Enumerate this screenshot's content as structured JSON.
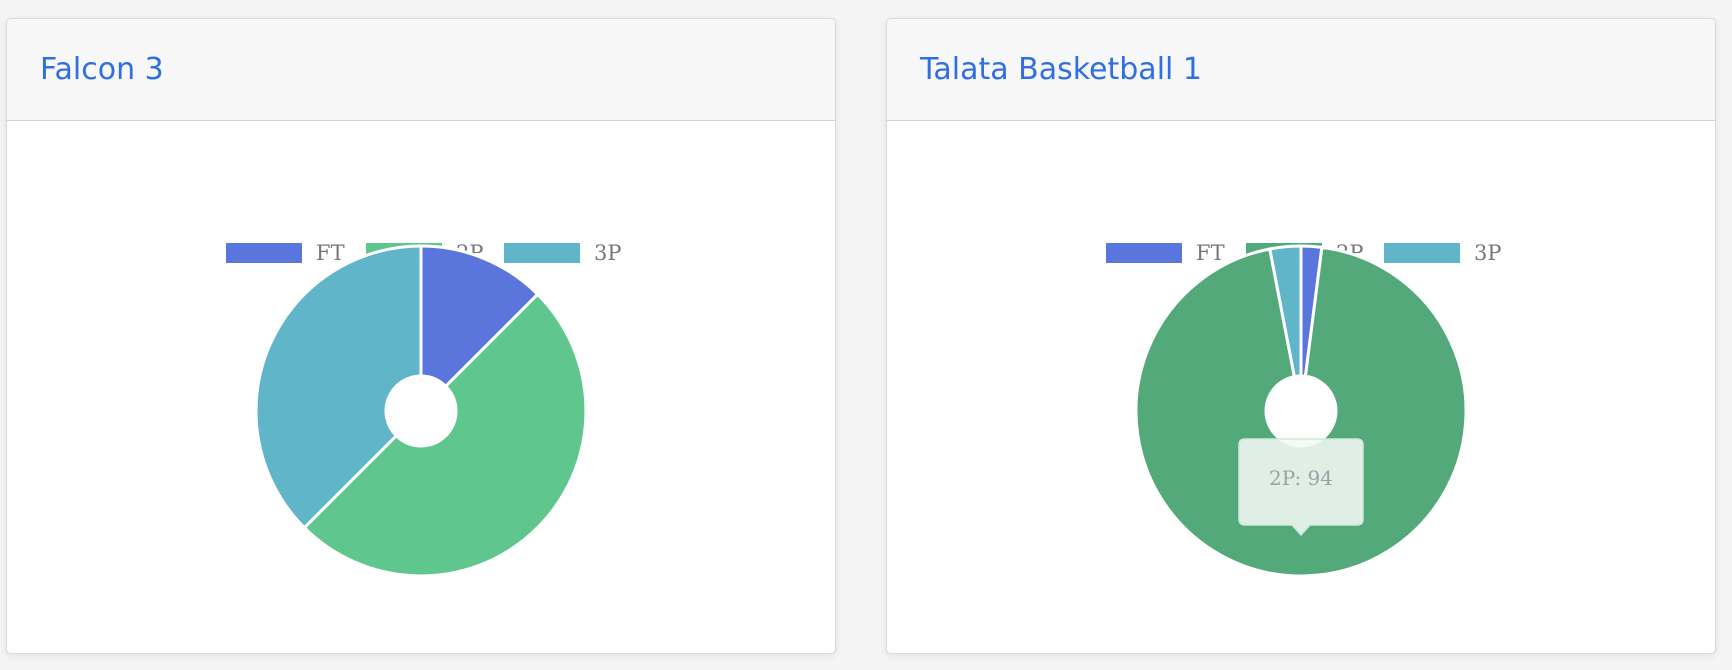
{
  "cards": [
    {
      "title": "Falcon 3",
      "chart_data": {
        "type": "pie",
        "categories": [
          "FT",
          "2P",
          "3P"
        ],
        "values": [
          12.5,
          50,
          37.5
        ],
        "colors": [
          "#5a75db",
          "#5fc68e",
          "#61b5c9"
        ],
        "legend_position": "top",
        "doughnut": true
      }
    },
    {
      "title": "Talata Basketball 1",
      "chart_data": {
        "type": "pie",
        "categories": [
          "FT",
          "2P",
          "3P"
        ],
        "values": [
          2,
          94,
          3
        ],
        "colors": [
          "#5a75db",
          "#53a97a",
          "#61b5c9"
        ],
        "legend_position": "top",
        "doughnut": true,
        "tooltip": {
          "text": "2P: 94"
        }
      }
    }
  ]
}
